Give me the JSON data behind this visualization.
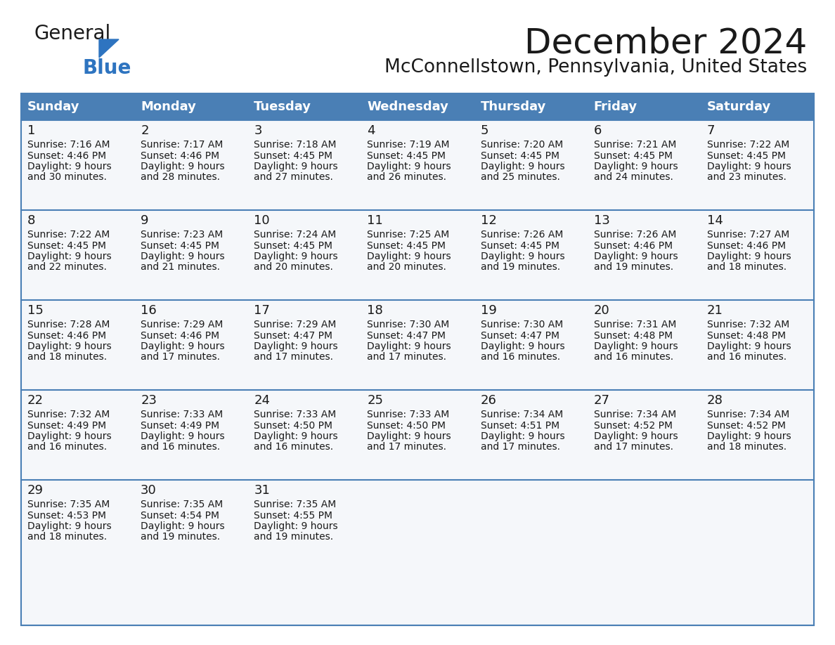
{
  "title": "December 2024",
  "subtitle": "McConnellstown, Pennsylvania, United States",
  "header_color": "#4a7fb5",
  "header_text_color": "#ffffff",
  "cell_bg_color": "#f5f7fa",
  "border_color": "#2e5fa3",
  "row_line_color": "#4a7fb5",
  "days_of_week": [
    "Sunday",
    "Monday",
    "Tuesday",
    "Wednesday",
    "Thursday",
    "Friday",
    "Saturday"
  ],
  "weeks": [
    [
      {
        "day": 1,
        "sunrise": "7:16 AM",
        "sunset": "4:46 PM",
        "daylight": "9 hours and 30 minutes."
      },
      {
        "day": 2,
        "sunrise": "7:17 AM",
        "sunset": "4:46 PM",
        "daylight": "9 hours and 28 minutes."
      },
      {
        "day": 3,
        "sunrise": "7:18 AM",
        "sunset": "4:45 PM",
        "daylight": "9 hours and 27 minutes."
      },
      {
        "day": 4,
        "sunrise": "7:19 AM",
        "sunset": "4:45 PM",
        "daylight": "9 hours and 26 minutes."
      },
      {
        "day": 5,
        "sunrise": "7:20 AM",
        "sunset": "4:45 PM",
        "daylight": "9 hours and 25 minutes."
      },
      {
        "day": 6,
        "sunrise": "7:21 AM",
        "sunset": "4:45 PM",
        "daylight": "9 hours and 24 minutes."
      },
      {
        "day": 7,
        "sunrise": "7:22 AM",
        "sunset": "4:45 PM",
        "daylight": "9 hours and 23 minutes."
      }
    ],
    [
      {
        "day": 8,
        "sunrise": "7:22 AM",
        "sunset": "4:45 PM",
        "daylight": "9 hours and 22 minutes."
      },
      {
        "day": 9,
        "sunrise": "7:23 AM",
        "sunset": "4:45 PM",
        "daylight": "9 hours and 21 minutes."
      },
      {
        "day": 10,
        "sunrise": "7:24 AM",
        "sunset": "4:45 PM",
        "daylight": "9 hours and 20 minutes."
      },
      {
        "day": 11,
        "sunrise": "7:25 AM",
        "sunset": "4:45 PM",
        "daylight": "9 hours and 20 minutes."
      },
      {
        "day": 12,
        "sunrise": "7:26 AM",
        "sunset": "4:45 PM",
        "daylight": "9 hours and 19 minutes."
      },
      {
        "day": 13,
        "sunrise": "7:26 AM",
        "sunset": "4:46 PM",
        "daylight": "9 hours and 19 minutes."
      },
      {
        "day": 14,
        "sunrise": "7:27 AM",
        "sunset": "4:46 PM",
        "daylight": "9 hours and 18 minutes."
      }
    ],
    [
      {
        "day": 15,
        "sunrise": "7:28 AM",
        "sunset": "4:46 PM",
        "daylight": "9 hours and 18 minutes."
      },
      {
        "day": 16,
        "sunrise": "7:29 AM",
        "sunset": "4:46 PM",
        "daylight": "9 hours and 17 minutes."
      },
      {
        "day": 17,
        "sunrise": "7:29 AM",
        "sunset": "4:47 PM",
        "daylight": "9 hours and 17 minutes."
      },
      {
        "day": 18,
        "sunrise": "7:30 AM",
        "sunset": "4:47 PM",
        "daylight": "9 hours and 17 minutes."
      },
      {
        "day": 19,
        "sunrise": "7:30 AM",
        "sunset": "4:47 PM",
        "daylight": "9 hours and 16 minutes."
      },
      {
        "day": 20,
        "sunrise": "7:31 AM",
        "sunset": "4:48 PM",
        "daylight": "9 hours and 16 minutes."
      },
      {
        "day": 21,
        "sunrise": "7:32 AM",
        "sunset": "4:48 PM",
        "daylight": "9 hours and 16 minutes."
      }
    ],
    [
      {
        "day": 22,
        "sunrise": "7:32 AM",
        "sunset": "4:49 PM",
        "daylight": "9 hours and 16 minutes."
      },
      {
        "day": 23,
        "sunrise": "7:33 AM",
        "sunset": "4:49 PM",
        "daylight": "9 hours and 16 minutes."
      },
      {
        "day": 24,
        "sunrise": "7:33 AM",
        "sunset": "4:50 PM",
        "daylight": "9 hours and 16 minutes."
      },
      {
        "day": 25,
        "sunrise": "7:33 AM",
        "sunset": "4:50 PM",
        "daylight": "9 hours and 17 minutes."
      },
      {
        "day": 26,
        "sunrise": "7:34 AM",
        "sunset": "4:51 PM",
        "daylight": "9 hours and 17 minutes."
      },
      {
        "day": 27,
        "sunrise": "7:34 AM",
        "sunset": "4:52 PM",
        "daylight": "9 hours and 17 minutes."
      },
      {
        "day": 28,
        "sunrise": "7:34 AM",
        "sunset": "4:52 PM",
        "daylight": "9 hours and 18 minutes."
      }
    ],
    [
      {
        "day": 29,
        "sunrise": "7:35 AM",
        "sunset": "4:53 PM",
        "daylight": "9 hours and 18 minutes."
      },
      {
        "day": 30,
        "sunrise": "7:35 AM",
        "sunset": "4:54 PM",
        "daylight": "9 hours and 19 minutes."
      },
      {
        "day": 31,
        "sunrise": "7:35 AM",
        "sunset": "4:55 PM",
        "daylight": "9 hours and 19 minutes."
      },
      null,
      null,
      null,
      null
    ]
  ],
  "logo_general_color": "#1a1a1a",
  "logo_blue_color": "#2e74c0",
  "logo_triangle_color": "#2e74c0",
  "title_fontsize": 36,
  "subtitle_fontsize": 19,
  "day_number_fontsize": 13,
  "cell_text_fontsize": 10,
  "header_fontsize": 13
}
